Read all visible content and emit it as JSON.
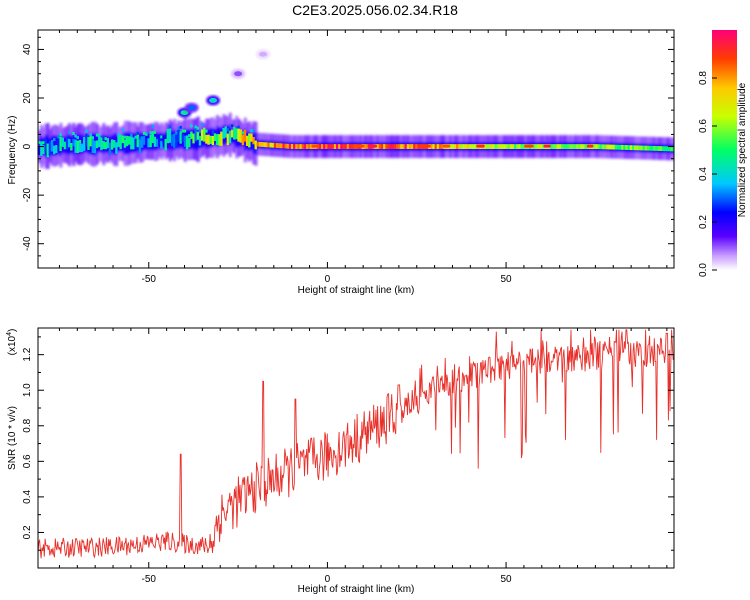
{
  "figure": {
    "title": "C2E3.2025.056.02.34.R18"
  },
  "chart_data": [
    {
      "type": "heatmap",
      "xlabel": "Height of straight line (km)",
      "ylabel": "Frequency (Hz)",
      "xlim": [
        -81,
        97
      ],
      "ylim": [
        -50,
        48
      ],
      "x_ticks": [
        -50,
        0,
        50
      ],
      "y_ticks": [
        -40,
        -20,
        0,
        20,
        40
      ],
      "colorbar": {
        "label": "Normalized spectral amplitude",
        "range": [
          0,
          1
        ],
        "ticks": [
          "0.0",
          "0.2",
          "0.4",
          "0.6",
          "0.8"
        ],
        "colors": [
          "#ffffff",
          "#c89cff",
          "#5a00ff",
          "#0000ff",
          "#00c8ff",
          "#00ff64",
          "#c8ff00",
          "#ffc800",
          "#ff3c00",
          "#ff0078"
        ]
      },
      "ridge": [
        {
          "x": -81,
          "freq": 0,
          "amp": 0.35
        },
        {
          "x": -70,
          "freq": 1,
          "amp": 0.45
        },
        {
          "x": -60,
          "freq": 1,
          "amp": 0.4
        },
        {
          "x": -50,
          "freq": 2,
          "amp": 0.4
        },
        {
          "x": -40,
          "freq": 3,
          "amp": 0.35
        },
        {
          "x": -35,
          "freq": 3,
          "amp": 0.55
        },
        {
          "x": -28,
          "freq": 5,
          "amp": 0.6
        },
        {
          "x": -20,
          "freq": 1,
          "amp": 0.75
        },
        {
          "x": -10,
          "freq": 0,
          "amp": 0.85
        },
        {
          "x": 0,
          "freq": 0,
          "amp": 0.9
        },
        {
          "x": 20,
          "freq": 0,
          "amp": 0.85
        },
        {
          "x": 50,
          "freq": 0,
          "amp": 0.6
        },
        {
          "x": 75,
          "freq": 0,
          "amp": 0.6
        },
        {
          "x": 97,
          "freq": -1,
          "amp": 0.5
        }
      ],
      "features": [
        {
          "x": -40,
          "freq": 14,
          "amp": 0.45
        },
        {
          "x": -38,
          "freq": 16,
          "amp": 0.3
        },
        {
          "x": -32,
          "freq": 19,
          "amp": 0.4
        },
        {
          "x": -25,
          "freq": 30,
          "amp": 0.1
        },
        {
          "x": -18,
          "freq": 38,
          "amp": 0.05
        }
      ]
    },
    {
      "type": "line",
      "xlabel": "Height of straight line (km)",
      "ylabel": "SNR (10 * v/v)",
      "scale_label": "(x10",
      "scale_exp": "4",
      "xlim": [
        -81,
        97
      ],
      "ylim": [
        0,
        13500
      ],
      "x_ticks": [
        -50,
        0,
        50
      ],
      "y_tick_labels": [
        "0.2",
        "0.4",
        "0.6",
        "0.8",
        "1.0",
        "1.2"
      ],
      "color": "#e8302a",
      "trend": [
        {
          "x": -81,
          "y": 1100
        },
        {
          "x": -60,
          "y": 1200
        },
        {
          "x": -45,
          "y": 1500
        },
        {
          "x": -33,
          "y": 1200
        },
        {
          "x": -30,
          "y": 3000
        },
        {
          "x": -20,
          "y": 4500
        },
        {
          "x": -10,
          "y": 5500
        },
        {
          "x": 0,
          "y": 6300
        },
        {
          "x": 10,
          "y": 7500
        },
        {
          "x": 20,
          "y": 8800
        },
        {
          "x": 30,
          "y": 10000
        },
        {
          "x": 40,
          "y": 10800
        },
        {
          "x": 50,
          "y": 11400
        },
        {
          "x": 60,
          "y": 11700
        },
        {
          "x": 70,
          "y": 11800
        },
        {
          "x": 80,
          "y": 12000
        },
        {
          "x": 97,
          "y": 12200
        }
      ],
      "peaks": [
        {
          "x": -41,
          "y": 6400
        },
        {
          "x": -18,
          "y": 10500
        },
        {
          "x": -9,
          "y": 9500
        },
        {
          "x": 20,
          "y": 10300
        },
        {
          "x": 95,
          "y": 13200
        }
      ]
    }
  ]
}
